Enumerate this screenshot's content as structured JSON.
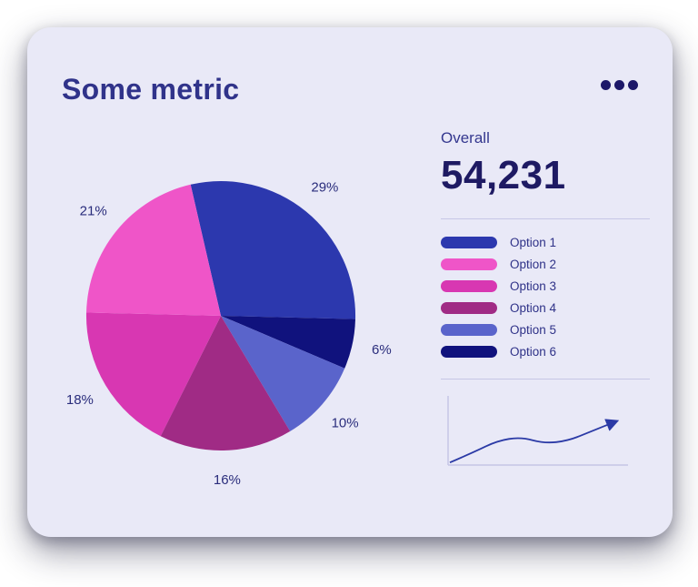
{
  "card": {
    "title": "Some metric"
  },
  "menu": {
    "icon": "ellipsis-icon"
  },
  "overall": {
    "label": "Overall",
    "value": "54,231"
  },
  "legend": {
    "items": [
      {
        "label": "Option 1",
        "color": "#2c38ae"
      },
      {
        "label": "Option 2",
        "color": "#ef55c8"
      },
      {
        "label": "Option 3",
        "color": "#d837b2"
      },
      {
        "label": "Option 4",
        "color": "#a02b85"
      },
      {
        "label": "Option 5",
        "color": "#5a64cb"
      },
      {
        "label": "Option 6",
        "color": "#10127d"
      }
    ]
  },
  "chart_data": [
    {
      "type": "pie",
      "title": "Some metric",
      "label_format": "percent",
      "start_angle_deg": -103,
      "direction": "clockwise",
      "slices": [
        {
          "label": "Option 1",
          "value": 29,
          "color": "#2c38ae"
        },
        {
          "label": "Option 6",
          "value": 6,
          "color": "#10127d"
        },
        {
          "label": "Option 5",
          "value": 10,
          "color": "#5a64cb"
        },
        {
          "label": "Option 4",
          "value": 16,
          "color": "#a02b85"
        },
        {
          "label": "Option 3",
          "value": 18,
          "color": "#d837b2"
        },
        {
          "label": "Option 2",
          "value": 21,
          "color": "#ef55c8"
        }
      ]
    },
    {
      "type": "line",
      "name": "trend-sparkline",
      "values": [
        4,
        20,
        38,
        44,
        34,
        38,
        53,
        68
      ],
      "ylim": [
        0,
        100
      ],
      "legend": "none",
      "axes": "minimal",
      "annotation": "upward trend with arrow head at end"
    }
  ]
}
